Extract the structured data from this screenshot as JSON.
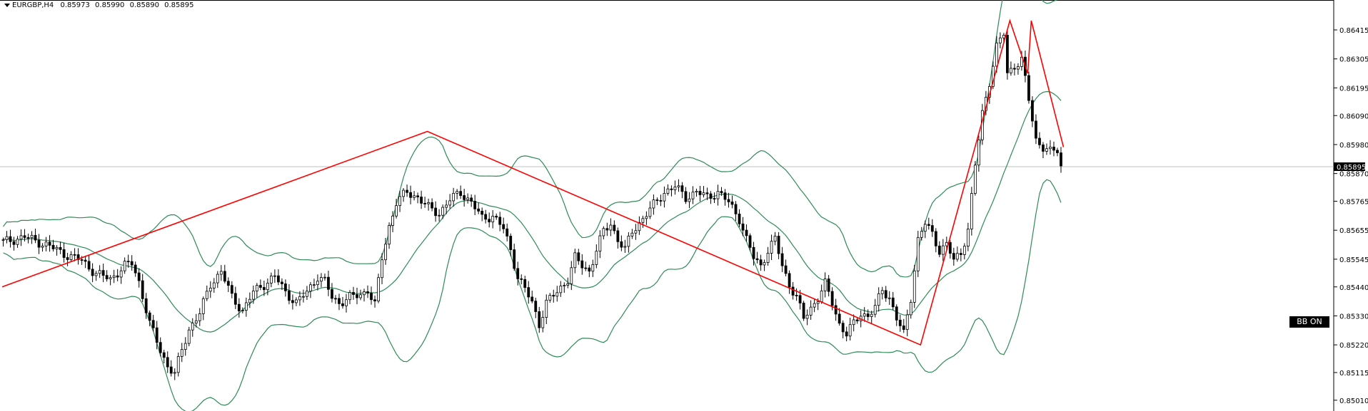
{
  "header": {
    "symbol_timeframe": "EURGBP,H4",
    "open": "0.85973",
    "high": "0.85990",
    "low": "0.85890",
    "close": "0.85895"
  },
  "badge": {
    "label": "BB ON"
  },
  "chart_data": {
    "type": "candlestick",
    "title": "EURGBP,H4",
    "price_axis_labels": [
      "0.86415",
      "0.86305",
      "0.86195",
      "0.86090",
      "0.85980",
      "0.85870",
      "0.85765",
      "0.85655",
      "0.85545",
      "0.85440",
      "0.85330",
      "0.85220",
      "0.85115",
      "0.85010"
    ],
    "ylim": [
      0.8499,
      0.8652
    ],
    "current_price": "0.85895",
    "bars": 200,
    "close_path": [
      [
        0,
        0.8561
      ],
      [
        6,
        0.8563
      ],
      [
        12,
        0.856
      ],
      [
        18,
        0.8556
      ],
      [
        22,
        0.8554
      ],
      [
        26,
        0.8549
      ],
      [
        30,
        0.8547
      ],
      [
        34,
        0.8552
      ],
      [
        36,
        0.8553
      ],
      [
        38,
        0.8546
      ],
      [
        41,
        0.853
      ],
      [
        44,
        0.852
      ],
      [
        46,
        0.8514
      ],
      [
        48,
        0.8511
      ],
      [
        50,
        0.852
      ],
      [
        52,
        0.8528
      ],
      [
        55,
        0.8534
      ],
      [
        58,
        0.8545
      ],
      [
        61,
        0.855
      ],
      [
        64,
        0.854
      ],
      [
        67,
        0.8535
      ],
      [
        70,
        0.8542
      ],
      [
        73,
        0.8545
      ],
      [
        76,
        0.8548
      ],
      [
        79,
        0.8542
      ],
      [
        82,
        0.8538
      ],
      [
        85,
        0.8542
      ],
      [
        88,
        0.8548
      ],
      [
        90,
        0.8546
      ],
      [
        92,
        0.854
      ],
      [
        94,
        0.8538
      ],
      [
        97,
        0.854
      ],
      [
        100,
        0.8541
      ],
      [
        102,
        0.8543
      ],
      [
        104,
        0.8537
      ],
      [
        106,
        0.8555
      ],
      [
        108,
        0.8567
      ],
      [
        110,
        0.8576
      ],
      [
        113,
        0.858
      ],
      [
        116,
        0.8578
      ],
      [
        119,
        0.8574
      ],
      [
        122,
        0.8572
      ],
      [
        125,
        0.8577
      ],
      [
        128,
        0.858
      ],
      [
        131,
        0.8576
      ],
      [
        134,
        0.857
      ],
      [
        137,
        0.8571
      ],
      [
        140,
        0.8566
      ],
      [
        142,
        0.8558
      ],
      [
        144,
        0.8548
      ],
      [
        146,
        0.8543
      ],
      [
        148,
        0.8538
      ],
      [
        150,
        0.853
      ],
      [
        152,
        0.8538
      ],
      [
        155,
        0.8542
      ],
      [
        158,
        0.8547
      ],
      [
        160,
        0.8555
      ],
      [
        162,
        0.8552
      ],
      [
        164,
        0.855
      ],
      [
        166,
        0.8558
      ],
      [
        168,
        0.8565
      ],
      [
        170,
        0.8568
      ],
      [
        172,
        0.8562
      ],
      [
        174,
        0.8558
      ],
      [
        176,
        0.8565
      ],
      [
        179,
        0.857
      ],
      [
        182,
        0.8575
      ],
      [
        185,
        0.858
      ],
      [
        188,
        0.8582
      ],
      [
        191,
        0.8578
      ],
      [
        194,
        0.858
      ],
      [
        197,
        0.8578
      ],
      [
        200,
        0.858
      ],
      [
        203,
        0.8576
      ],
      [
        206,
        0.857
      ],
      [
        208,
        0.8562
      ],
      [
        210,
        0.8555
      ],
      [
        212,
        0.8552
      ],
      [
        214,
        0.8558
      ],
      [
        216,
        0.8562
      ],
      [
        218,
        0.8552
      ],
      [
        220,
        0.8545
      ],
      [
        222,
        0.854
      ],
      [
        224,
        0.8532
      ],
      [
        226,
        0.8536
      ],
      [
        228,
        0.854
      ],
      [
        230,
        0.8545
      ],
      [
        232,
        0.8538
      ],
      [
        234,
        0.853
      ],
      [
        236,
        0.8526
      ],
      [
        238,
        0.853
      ],
      [
        240,
        0.8534
      ],
      [
        242,
        0.8533
      ],
      [
        244,
        0.8536
      ],
      [
        246,
        0.8543
      ],
      [
        248,
        0.854
      ],
      [
        250,
        0.8532
      ],
      [
        252,
        0.8526
      ],
      [
        254,
        0.854
      ],
      [
        256,
        0.8562
      ],
      [
        258,
        0.8568
      ],
      [
        260,
        0.8564
      ],
      [
        262,
        0.8558
      ],
      [
        264,
        0.856
      ],
      [
        266,
        0.8554
      ],
      [
        268,
        0.8557
      ],
      [
        270,
        0.8566
      ],
      [
        272,
        0.859
      ],
      [
        274,
        0.861
      ],
      [
        276,
        0.8622
      ],
      [
        278,
        0.8635
      ],
      [
        280,
        0.864
      ],
      [
        281,
        0.8625
      ],
      [
        283,
        0.8628
      ],
      [
        285,
        0.863
      ],
      [
        287,
        0.8615
      ],
      [
        289,
        0.86
      ],
      [
        291,
        0.8597
      ],
      [
        293,
        0.8595
      ],
      [
        295,
        0.8596
      ],
      [
        296,
        0.859
      ]
    ],
    "indicators": {
      "bollinger_bands": "BB ON",
      "zigzag_points": [
        [
          0,
          0.8544
        ],
        [
          119,
          0.8603
        ],
        [
          257,
          0.8522
        ],
        [
          282,
          0.8645
        ],
        [
          287,
          0.8625
        ],
        [
          288,
          0.8645
        ],
        [
          297,
          0.8597
        ]
      ]
    }
  }
}
